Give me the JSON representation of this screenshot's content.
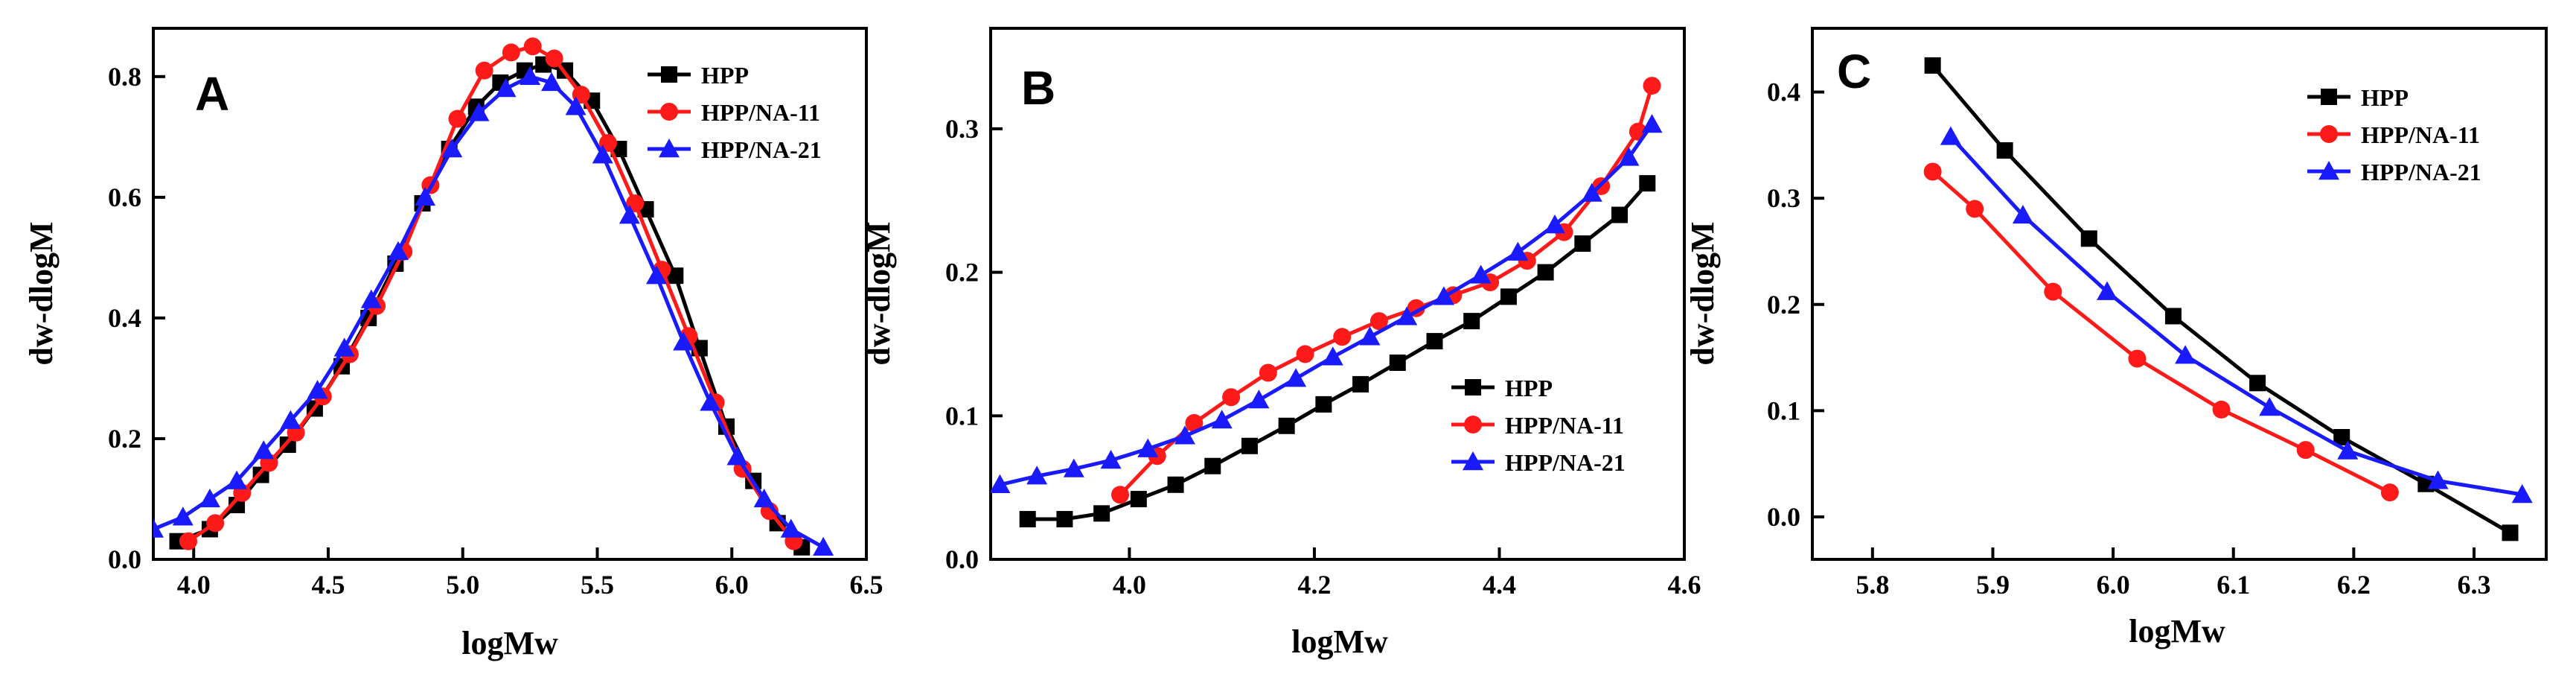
{
  "colors": {
    "HPP": "#000000",
    "HPP/NA-11": "#ff1a1a",
    "HPP/NA-21": "#1a1aff"
  },
  "chart_data": [
    {
      "type": "line",
      "panel": "A",
      "xlabel": "logMw",
      "ylabel": "dw-dlogM",
      "xlim": [
        3.85,
        6.5
      ],
      "ylim": [
        0.0,
        0.88
      ],
      "xticks": [
        4.0,
        4.5,
        5.0,
        5.5,
        6.0,
        6.5
      ],
      "yticks": [
        0.0,
        0.2,
        0.4,
        0.6,
        0.8
      ],
      "xtick_labels": [
        "4.0",
        "4.5",
        "5.0",
        "5.5",
        "6.0",
        "6.5"
      ],
      "ytick_labels": [
        "0.0",
        "0.2",
        "0.4",
        "0.6",
        "0.8"
      ],
      "legend_position": "top-right",
      "series": [
        {
          "name": "HPP",
          "marker": "square",
          "x": [
            3.94,
            4.06,
            4.16,
            4.25,
            4.35,
            4.45,
            4.55,
            4.65,
            4.75,
            4.85,
            4.95,
            5.05,
            5.14,
            5.23,
            5.3,
            5.38,
            5.48,
            5.58,
            5.68,
            5.79,
            5.88,
            5.98,
            6.08,
            6.17,
            6.26
          ],
          "y": [
            0.03,
            0.05,
            0.09,
            0.14,
            0.19,
            0.25,
            0.32,
            0.4,
            0.49,
            0.59,
            0.68,
            0.75,
            0.79,
            0.81,
            0.82,
            0.81,
            0.76,
            0.68,
            0.58,
            0.47,
            0.35,
            0.22,
            0.13,
            0.06,
            0.02
          ]
        },
        {
          "name": "HPP/NA-11",
          "marker": "circle",
          "x": [
            3.98,
            4.08,
            4.18,
            4.28,
            4.38,
            4.48,
            4.58,
            4.68,
            4.78,
            4.88,
            4.98,
            5.08,
            5.18,
            5.26,
            5.34,
            5.44,
            5.54,
            5.64,
            5.74,
            5.84,
            5.94,
            6.04,
            6.14,
            6.23
          ],
          "y": [
            0.03,
            0.06,
            0.11,
            0.16,
            0.21,
            0.27,
            0.34,
            0.42,
            0.51,
            0.62,
            0.73,
            0.81,
            0.84,
            0.85,
            0.83,
            0.77,
            0.69,
            0.59,
            0.48,
            0.37,
            0.26,
            0.15,
            0.08,
            0.03
          ]
        },
        {
          "name": "HPP/NA-21",
          "marker": "triangle",
          "x": [
            3.85,
            3.96,
            4.06,
            4.16,
            4.26,
            4.36,
            4.46,
            4.56,
            4.66,
            4.76,
            4.86,
            4.96,
            5.06,
            5.16,
            5.25,
            5.33,
            5.42,
            5.52,
            5.62,
            5.72,
            5.82,
            5.92,
            6.02,
            6.12,
            6.22,
            6.34
          ],
          "y": [
            0.05,
            0.07,
            0.1,
            0.13,
            0.18,
            0.23,
            0.28,
            0.35,
            0.43,
            0.51,
            0.6,
            0.68,
            0.74,
            0.78,
            0.8,
            0.79,
            0.75,
            0.67,
            0.57,
            0.47,
            0.36,
            0.26,
            0.17,
            0.1,
            0.05,
            0.02
          ]
        }
      ]
    },
    {
      "type": "line",
      "panel": "B",
      "xlabel": "logMw",
      "ylabel": "dw-dlogM",
      "xlim": [
        3.85,
        4.6
      ],
      "ylim": [
        0.0,
        0.37
      ],
      "xticks": [
        4.0,
        4.2,
        4.4,
        4.6
      ],
      "yticks": [
        0.0,
        0.1,
        0.2,
        0.3
      ],
      "xtick_labels": [
        "4.0",
        "4.2",
        "4.4",
        "4.6"
      ],
      "ytick_labels": [
        "0.0",
        "0.1",
        "0.2",
        "0.3"
      ],
      "legend_position": "bottom-right",
      "series": [
        {
          "name": "HPP",
          "marker": "square",
          "x": [
            3.89,
            3.93,
            3.97,
            4.01,
            4.05,
            4.09,
            4.13,
            4.17,
            4.21,
            4.25,
            4.29,
            4.33,
            4.37,
            4.41,
            4.45,
            4.49,
            4.53,
            4.56
          ],
          "y": [
            0.028,
            0.028,
            0.032,
            0.042,
            0.052,
            0.065,
            0.079,
            0.093,
            0.108,
            0.122,
            0.137,
            0.152,
            0.166,
            0.183,
            0.2,
            0.22,
            0.24,
            0.262
          ]
        },
        {
          "name": "HPP/NA-11",
          "marker": "circle",
          "x": [
            3.99,
            4.03,
            4.07,
            4.11,
            4.15,
            4.19,
            4.23,
            4.27,
            4.31,
            4.35,
            4.39,
            4.43,
            4.47,
            4.51,
            4.55,
            4.565
          ],
          "y": [
            0.045,
            0.072,
            0.095,
            0.113,
            0.13,
            0.143,
            0.155,
            0.166,
            0.175,
            0.184,
            0.193,
            0.208,
            0.228,
            0.26,
            0.298,
            0.33
          ]
        },
        {
          "name": "HPP/NA-21",
          "marker": "triangle",
          "x": [
            3.86,
            3.9,
            3.94,
            3.98,
            4.02,
            4.06,
            4.1,
            4.14,
            4.18,
            4.22,
            4.26,
            4.3,
            4.34,
            4.38,
            4.42,
            4.46,
            4.5,
            4.54,
            4.565
          ],
          "y": [
            0.052,
            0.058,
            0.063,
            0.069,
            0.077,
            0.086,
            0.097,
            0.111,
            0.126,
            0.141,
            0.155,
            0.169,
            0.183,
            0.198,
            0.214,
            0.233,
            0.255,
            0.28,
            0.303
          ]
        }
      ]
    },
    {
      "type": "line",
      "panel": "C",
      "xlabel": "logMw",
      "ylabel": "dw-dlogM",
      "xlim": [
        5.75,
        6.36
      ],
      "ylim": [
        -0.04,
        0.46
      ],
      "xticks": [
        5.8,
        5.9,
        6.0,
        6.1,
        6.2,
        6.3
      ],
      "yticks": [
        0.0,
        0.1,
        0.2,
        0.3,
        0.4
      ],
      "xtick_labels": [
        "5.8",
        "5.9",
        "6.0",
        "6.1",
        "6.2",
        "6.3"
      ],
      "ytick_labels": [
        "0.0",
        "0.1",
        "0.2",
        "0.3",
        "0.4"
      ],
      "legend_position": "top-right",
      "series": [
        {
          "name": "HPP",
          "marker": "square",
          "x": [
            5.85,
            5.91,
            5.98,
            6.05,
            6.12,
            6.19,
            6.26,
            6.33
          ],
          "y": [
            0.425,
            0.345,
            0.262,
            0.189,
            0.126,
            0.075,
            0.031,
            -0.015
          ]
        },
        {
          "name": "HPP/NA-11",
          "marker": "circle",
          "x": [
            5.85,
            5.885,
            5.95,
            6.02,
            6.09,
            6.16,
            6.23
          ],
          "y": [
            0.325,
            0.29,
            0.212,
            0.149,
            0.101,
            0.063,
            0.023
          ]
        },
        {
          "name": "HPP/NA-21",
          "marker": "triangle",
          "x": [
            5.865,
            5.925,
            5.995,
            6.06,
            6.13,
            6.195,
            6.27,
            6.34
          ],
          "y": [
            0.358,
            0.284,
            0.212,
            0.152,
            0.103,
            0.062,
            0.034,
            0.021
          ]
        }
      ]
    }
  ]
}
